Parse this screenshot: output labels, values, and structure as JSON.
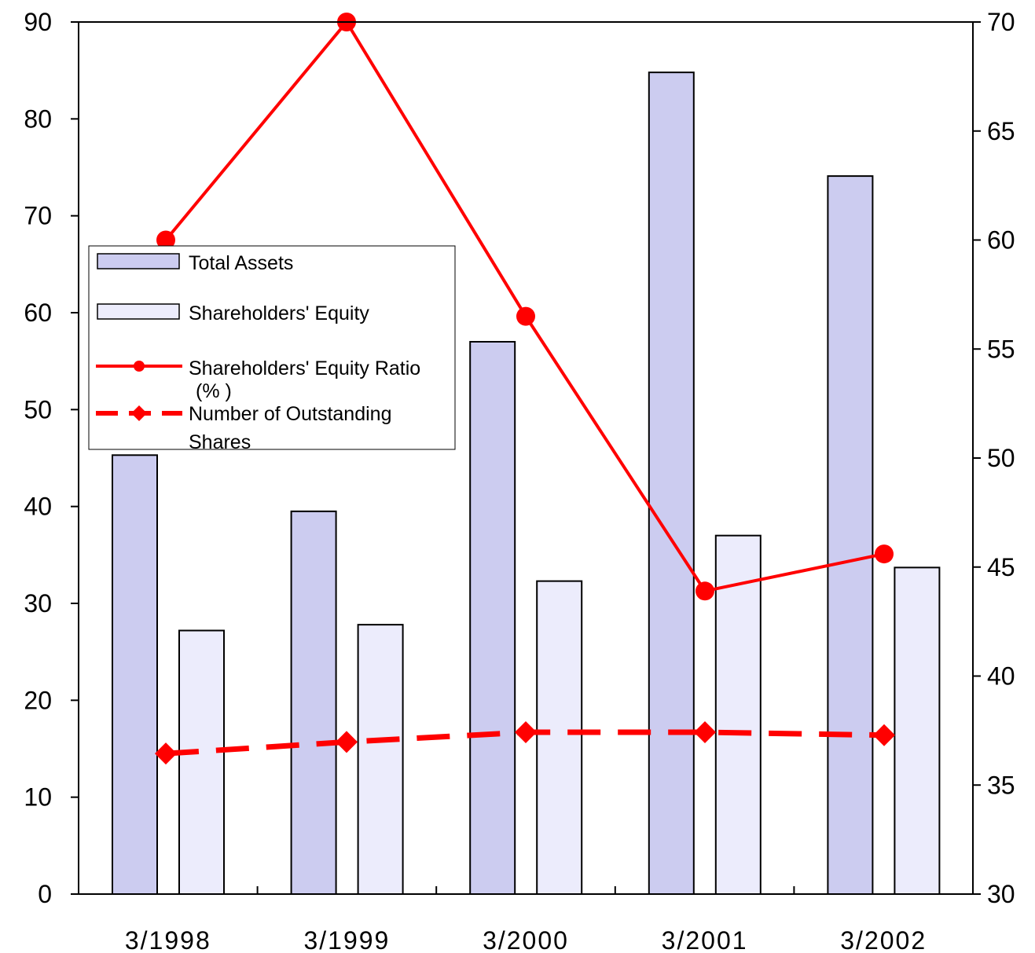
{
  "chart_data": {
    "type": "bar",
    "title": "",
    "xlabel": "",
    "categories": [
      "3/1998",
      "3/1999",
      "3/2000",
      "3/2001",
      "3/2002"
    ],
    "y_left": {
      "label": "",
      "lim": [
        0,
        90
      ],
      "ticks": [
        0,
        10,
        20,
        30,
        40,
        50,
        60,
        70,
        80,
        90
      ]
    },
    "y_right": {
      "label": "",
      "lim": [
        30,
        70
      ],
      "ticks": [
        30,
        35,
        40,
        45,
        50,
        55,
        60,
        65,
        70
      ]
    },
    "grid": false,
    "legend_position": "left-middle",
    "series": [
      {
        "name": "Total Assets",
        "kind": "bar",
        "axis": "left",
        "color": "#ccccf0",
        "values": [
          45.3,
          39.5,
          57.0,
          84.8,
          74.1
        ]
      },
      {
        "name": "Shareholders' Equity",
        "kind": "bar",
        "axis": "left",
        "color": "#ececfc",
        "values": [
          27.2,
          27.8,
          32.3,
          37.0,
          33.7
        ]
      },
      {
        "name": "Shareholders' Equity Ratio",
        "name_line2": "(% )",
        "kind": "line",
        "axis": "right",
        "color": "#ff0000",
        "marker": "circle",
        "dashed": false,
        "values": [
          60.0,
          70.0,
          56.5,
          43.9,
          45.6
        ]
      },
      {
        "name": "Number of Outstanding",
        "name_line2": "Shares",
        "kind": "line",
        "axis": "left",
        "color": "#ff0000",
        "marker": "diamond",
        "dashed": true,
        "values": [
          14.5,
          15.7,
          16.7,
          16.7,
          16.4
        ]
      }
    ]
  }
}
